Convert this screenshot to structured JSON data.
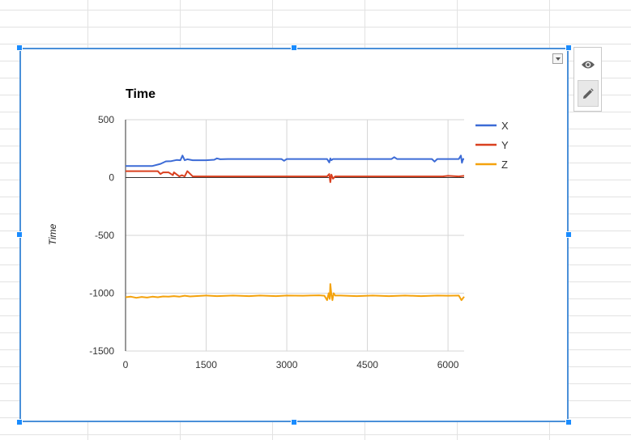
{
  "chart_data": {
    "type": "line",
    "title": "Time",
    "xlabel": "",
    "ylabel": "Time",
    "xlim": [
      0,
      6300
    ],
    "ylim": [
      -1500,
      500
    ],
    "x_ticks": [
      0,
      1500,
      3000,
      4500,
      6000
    ],
    "y_ticks": [
      500,
      0,
      -500,
      -1000,
      -1500
    ],
    "grid": true,
    "legend_position": "right",
    "series": [
      {
        "name": "X",
        "color": "#3c6bd6",
        "x": [
          0,
          250,
          500,
          650,
          750,
          850,
          950,
          1020,
          1060,
          1100,
          1150,
          1250,
          1350,
          1500,
          1650,
          1700,
          1760,
          1900,
          2100,
          2400,
          2800,
          2900,
          2950,
          3000,
          3300,
          3600,
          3750,
          3790,
          3810,
          3830,
          3860,
          3900,
          4000,
          4500,
          4950,
          5000,
          5050,
          5500,
          5700,
          5750,
          5800,
          6000,
          6200,
          6240,
          6260,
          6280,
          6300
        ],
        "y": [
          100,
          100,
          100,
          118,
          140,
          142,
          152,
          150,
          190,
          150,
          158,
          150,
          150,
          150,
          154,
          166,
          158,
          160,
          160,
          160,
          160,
          160,
          145,
          160,
          160,
          160,
          160,
          130,
          165,
          150,
          160,
          160,
          160,
          160,
          160,
          176,
          160,
          160,
          160,
          138,
          160,
          160,
          160,
          190,
          128,
          160,
          160
        ]
      },
      {
        "name": "Y",
        "color": "#d9401f",
        "x": [
          0,
          300,
          600,
          650,
          700,
          800,
          880,
          900,
          1000,
          1050,
          1100,
          1150,
          1250,
          1500,
          2000,
          2500,
          3000,
          3300,
          3600,
          3750,
          3790,
          3810,
          3830,
          3860,
          3900,
          4000,
          4500,
          5000,
          5500,
          5700,
          5900,
          6000,
          6200,
          6300
        ],
        "y": [
          55,
          55,
          55,
          30,
          45,
          45,
          20,
          45,
          10,
          20,
          10,
          55,
          10,
          10,
          10,
          10,
          10,
          10,
          10,
          10,
          30,
          -40,
          25,
          -10,
          10,
          10,
          10,
          10,
          10,
          10,
          10,
          15,
          10,
          15
        ]
      },
      {
        "name": "Z",
        "color": "#f4a20c",
        "x": [
          0,
          100,
          200,
          300,
          400,
          500,
          600,
          700,
          800,
          900,
          1000,
          1100,
          1200,
          1300,
          1500,
          1700,
          2000,
          2300,
          2500,
          2800,
          3000,
          3300,
          3600,
          3700,
          3750,
          3780,
          3800,
          3810,
          3830,
          3850,
          3870,
          3900,
          4000,
          4300,
          4600,
          4900,
          5200,
          5500,
          5800,
          6000,
          6200,
          6250,
          6300
        ],
        "y": [
          -1035,
          -1030,
          -1040,
          -1032,
          -1038,
          -1030,
          -1035,
          -1028,
          -1030,
          -1025,
          -1030,
          -1022,
          -1028,
          -1025,
          -1020,
          -1025,
          -1020,
          -1025,
          -1020,
          -1025,
          -1020,
          -1022,
          -1018,
          -1022,
          -1060,
          -1000,
          -1050,
          -920,
          -1010,
          -1060,
          -1000,
          -1020,
          -1020,
          -1025,
          -1020,
          -1025,
          -1020,
          -1025,
          -1020,
          -1022,
          -1020,
          -1060,
          -1030
        ]
      }
    ]
  }
}
